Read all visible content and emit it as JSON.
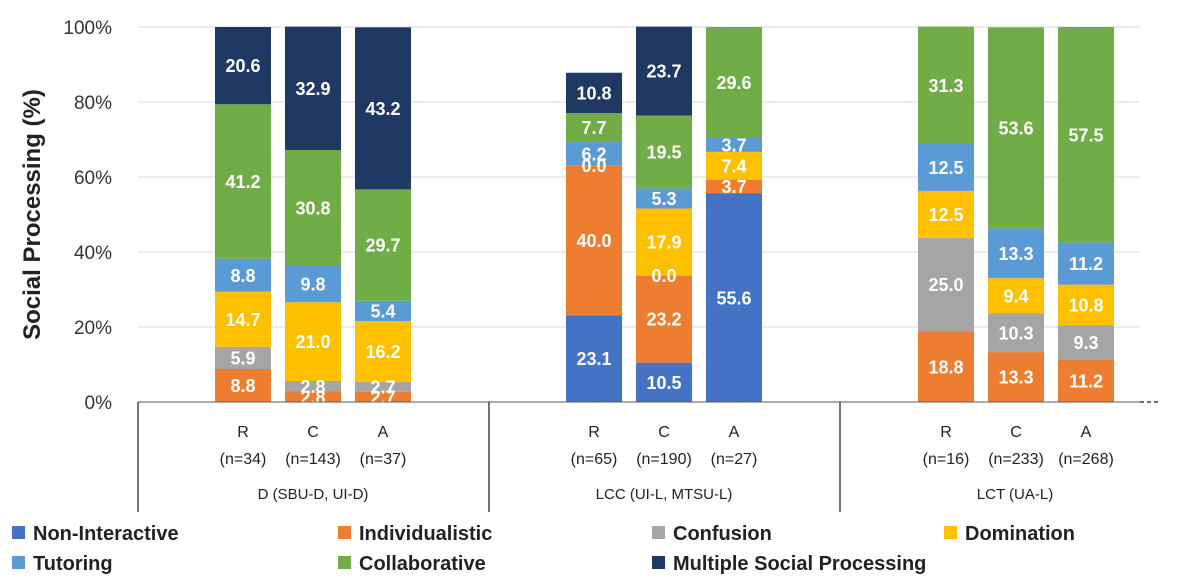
{
  "chart_data": {
    "type": "bar",
    "stacked": true,
    "ylabel": "Social Processing (%)",
    "ylim": [
      0,
      100
    ],
    "yticks": [
      "0%",
      "20%",
      "40%",
      "60%",
      "80%",
      "100%"
    ],
    "grid": true,
    "legend_position": "bottom",
    "groups": [
      {
        "label": "D (SBU-D, UI-D)",
        "categories": [
          {
            "label": "R",
            "n": "(n=34)"
          },
          {
            "label": "C",
            "n": "(n=143)"
          },
          {
            "label": "A",
            "n": "(n=37)"
          }
        ]
      },
      {
        "label": "LCC (UI-L, MTSU-L)",
        "categories": [
          {
            "label": "R",
            "n": "(n=65)"
          },
          {
            "label": "C",
            "n": "(n=190)"
          },
          {
            "label": "A",
            "n": "(n=27)"
          }
        ]
      },
      {
        "label": "LCT (UA-L)",
        "categories": [
          {
            "label": "R",
            "n": "(n=16)"
          },
          {
            "label": "C",
            "n": "(n=233)"
          },
          {
            "label": "A",
            "n": "(n=268)"
          }
        ]
      }
    ],
    "series": [
      {
        "name": "Non-Interactive",
        "color": "#4472C4",
        "label_color": "#ffffff",
        "values": [
          0,
          0,
          0,
          23.1,
          10.5,
          55.6,
          0,
          0,
          0
        ]
      },
      {
        "name": "Individualistic",
        "color": "#ED7D31",
        "label_color": "#ffffff",
        "values": [
          8.8,
          2.8,
          2.7,
          40.0,
          23.2,
          3.7,
          18.8,
          13.3,
          11.2
        ]
      },
      {
        "name": "Confusion",
        "color": "#A5A5A5",
        "label_color": "#ffffff",
        "values": [
          5.9,
          2.8,
          2.7,
          0,
          0.0,
          0,
          25.0,
          10.3,
          9.3
        ]
      },
      {
        "name": "Domination",
        "color": "#FFC000",
        "label_color": "#ffffff",
        "values": [
          14.7,
          21.0,
          16.2,
          0.0,
          17.9,
          7.4,
          12.5,
          9.4,
          10.8
        ]
      },
      {
        "name": "Tutoring",
        "color": "#5B9BD5",
        "label_color": "#ffffff",
        "values": [
          8.8,
          9.8,
          5.4,
          6.2,
          5.3,
          3.7,
          12.5,
          13.3,
          11.2
        ]
      },
      {
        "name": "Collaborative",
        "color": "#70AD47",
        "label_color": "#ffffff",
        "values": [
          41.2,
          30.8,
          29.7,
          7.7,
          19.5,
          29.6,
          31.3,
          53.6,
          57.5
        ]
      },
      {
        "name": "Multiple Social Processing",
        "color": "#1F3864",
        "label_color": "#ffffff",
        "values": [
          20.6,
          32.9,
          43.2,
          10.8,
          23.7,
          0,
          0,
          0,
          0
        ]
      }
    ],
    "data_labels": [
      [
        "",
        "",
        "",
        "23.1",
        "10.5",
        "55.6",
        "",
        "",
        ""
      ],
      [
        "8.8",
        "2.8",
        "2.7",
        "40.0",
        "23.2",
        "3.7",
        "18.8",
        "13.3",
        "11.2"
      ],
      [
        "5.9",
        "2.8",
        "2.7",
        "",
        "0.0",
        "",
        "25.0",
        "10.3",
        "9.3"
      ],
      [
        "14.7",
        "21.0",
        "16.2",
        "0.0",
        "17.9",
        "7.4",
        "12.5",
        "9.4",
        "10.8"
      ],
      [
        "8.8",
        "9.8",
        "5.4",
        "6.2",
        "5.3",
        "3.7",
        "12.5",
        "13.3",
        "11.2"
      ],
      [
        "41.2",
        "30.8",
        "29.7",
        "7.7",
        "19.5",
        "29.6",
        "31.3",
        "53.6",
        "57.5"
      ],
      [
        "20.6",
        "32.9",
        "43.2",
        "10.8",
        "23.7",
        "",
        "",
        "",
        ""
      ]
    ]
  }
}
